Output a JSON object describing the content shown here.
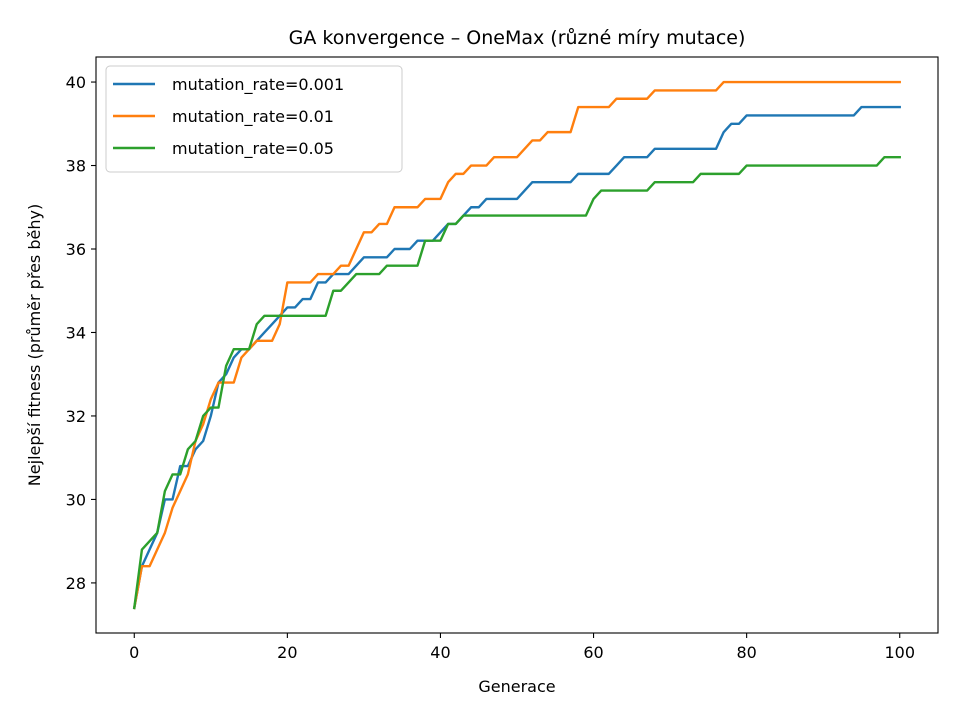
{
  "chart_data": {
    "type": "line",
    "title": "GA konvergence – OneMax (různé míry mutace)",
    "xlabel": "Generace",
    "ylabel": "Nejlepší fitness (průměr přes běhy)",
    "xlim": [
      -5,
      105
    ],
    "ylim": [
      26.8,
      40.6
    ],
    "xticks": [
      0,
      20,
      40,
      60,
      80,
      100
    ],
    "yticks": [
      28,
      30,
      32,
      34,
      36,
      38,
      40
    ],
    "grid": false,
    "legend_position": "top-left",
    "series": [
      {
        "name": "mutation_rate=0.001",
        "color": "#1f77b4",
        "points": [
          [
            0,
            27.4
          ],
          [
            1,
            28.4
          ],
          [
            2,
            28.8
          ],
          [
            3,
            29.2
          ],
          [
            4,
            30.0
          ],
          [
            5,
            30.0
          ],
          [
            6,
            30.8
          ],
          [
            7,
            30.8
          ],
          [
            8,
            31.2
          ],
          [
            9,
            31.4
          ],
          [
            10,
            32.0
          ],
          [
            11,
            32.8
          ],
          [
            12,
            33.0
          ],
          [
            13,
            33.4
          ],
          [
            14,
            33.6
          ],
          [
            15,
            33.6
          ],
          [
            16,
            33.8
          ],
          [
            17,
            34.0
          ],
          [
            18,
            34.2
          ],
          [
            19,
            34.4
          ],
          [
            20,
            34.6
          ],
          [
            21,
            34.6
          ],
          [
            22,
            34.8
          ],
          [
            23,
            34.8
          ],
          [
            24,
            35.2
          ],
          [
            25,
            35.2
          ],
          [
            26,
            35.4
          ],
          [
            27,
            35.4
          ],
          [
            28,
            35.4
          ],
          [
            29,
            35.6
          ],
          [
            30,
            35.8
          ],
          [
            31,
            35.8
          ],
          [
            32,
            35.8
          ],
          [
            33,
            35.8
          ],
          [
            34,
            36.0
          ],
          [
            35,
            36.0
          ],
          [
            36,
            36.0
          ],
          [
            37,
            36.2
          ],
          [
            38,
            36.2
          ],
          [
            39,
            36.2
          ],
          [
            40,
            36.4
          ],
          [
            41,
            36.6
          ],
          [
            42,
            36.6
          ],
          [
            43,
            36.8
          ],
          [
            44,
            37.0
          ],
          [
            45,
            37.0
          ],
          [
            46,
            37.2
          ],
          [
            47,
            37.2
          ],
          [
            48,
            37.2
          ],
          [
            49,
            37.2
          ],
          [
            50,
            37.2
          ],
          [
            51,
            37.4
          ],
          [
            52,
            37.6
          ],
          [
            53,
            37.6
          ],
          [
            54,
            37.6
          ],
          [
            55,
            37.6
          ],
          [
            56,
            37.6
          ],
          [
            57,
            37.6
          ],
          [
            58,
            37.8
          ],
          [
            59,
            37.8
          ],
          [
            60,
            37.8
          ],
          [
            61,
            37.8
          ],
          [
            62,
            37.8
          ],
          [
            63,
            38.0
          ],
          [
            64,
            38.2
          ],
          [
            65,
            38.2
          ],
          [
            66,
            38.2
          ],
          [
            67,
            38.2
          ],
          [
            68,
            38.4
          ],
          [
            69,
            38.4
          ],
          [
            70,
            38.4
          ],
          [
            71,
            38.4
          ],
          [
            72,
            38.4
          ],
          [
            73,
            38.4
          ],
          [
            74,
            38.4
          ],
          [
            75,
            38.4
          ],
          [
            76,
            38.4
          ],
          [
            77,
            38.8
          ],
          [
            78,
            39.0
          ],
          [
            79,
            39.0
          ],
          [
            80,
            39.2
          ],
          [
            81,
            39.2
          ],
          [
            82,
            39.2
          ],
          [
            83,
            39.2
          ],
          [
            84,
            39.2
          ],
          [
            85,
            39.2
          ],
          [
            86,
            39.2
          ],
          [
            87,
            39.2
          ],
          [
            88,
            39.2
          ],
          [
            89,
            39.2
          ],
          [
            90,
            39.2
          ],
          [
            91,
            39.2
          ],
          [
            92,
            39.2
          ],
          [
            93,
            39.2
          ],
          [
            94,
            39.2
          ],
          [
            95,
            39.4
          ],
          [
            96,
            39.4
          ],
          [
            97,
            39.4
          ],
          [
            98,
            39.4
          ],
          [
            99,
            39.4
          ],
          [
            100,
            39.4
          ]
        ]
      },
      {
        "name": "mutation_rate=0.01",
        "color": "#ff7f0e",
        "points": [
          [
            0,
            27.4
          ],
          [
            1,
            28.4
          ],
          [
            2,
            28.4
          ],
          [
            3,
            28.8
          ],
          [
            4,
            29.2
          ],
          [
            5,
            29.8
          ],
          [
            6,
            30.2
          ],
          [
            7,
            30.6
          ],
          [
            8,
            31.4
          ],
          [
            9,
            31.8
          ],
          [
            10,
            32.4
          ],
          [
            11,
            32.8
          ],
          [
            12,
            32.8
          ],
          [
            13,
            32.8
          ],
          [
            14,
            33.4
          ],
          [
            15,
            33.6
          ],
          [
            16,
            33.8
          ],
          [
            17,
            33.8
          ],
          [
            18,
            33.8
          ],
          [
            19,
            34.2
          ],
          [
            20,
            35.2
          ],
          [
            21,
            35.2
          ],
          [
            22,
            35.2
          ],
          [
            23,
            35.2
          ],
          [
            24,
            35.4
          ],
          [
            25,
            35.4
          ],
          [
            26,
            35.4
          ],
          [
            27,
            35.6
          ],
          [
            28,
            35.6
          ],
          [
            29,
            36.0
          ],
          [
            30,
            36.4
          ],
          [
            31,
            36.4
          ],
          [
            32,
            36.6
          ],
          [
            33,
            36.6
          ],
          [
            34,
            37.0
          ],
          [
            35,
            37.0
          ],
          [
            36,
            37.0
          ],
          [
            37,
            37.0
          ],
          [
            38,
            37.2
          ],
          [
            39,
            37.2
          ],
          [
            40,
            37.2
          ],
          [
            41,
            37.6
          ],
          [
            42,
            37.8
          ],
          [
            43,
            37.8
          ],
          [
            44,
            38.0
          ],
          [
            45,
            38.0
          ],
          [
            46,
            38.0
          ],
          [
            47,
            38.2
          ],
          [
            48,
            38.2
          ],
          [
            49,
            38.2
          ],
          [
            50,
            38.2
          ],
          [
            51,
            38.4
          ],
          [
            52,
            38.6
          ],
          [
            53,
            38.6
          ],
          [
            54,
            38.8
          ],
          [
            55,
            38.8
          ],
          [
            56,
            38.8
          ],
          [
            57,
            38.8
          ],
          [
            58,
            39.4
          ],
          [
            59,
            39.4
          ],
          [
            60,
            39.4
          ],
          [
            61,
            39.4
          ],
          [
            62,
            39.4
          ],
          [
            63,
            39.6
          ],
          [
            64,
            39.6
          ],
          [
            65,
            39.6
          ],
          [
            66,
            39.6
          ],
          [
            67,
            39.6
          ],
          [
            68,
            39.8
          ],
          [
            69,
            39.8
          ],
          [
            70,
            39.8
          ],
          [
            71,
            39.8
          ],
          [
            72,
            39.8
          ],
          [
            73,
            39.8
          ],
          [
            74,
            39.8
          ],
          [
            75,
            39.8
          ],
          [
            76,
            39.8
          ],
          [
            77,
            40.0
          ],
          [
            78,
            40.0
          ],
          [
            79,
            40.0
          ],
          [
            80,
            40.0
          ],
          [
            81,
            40.0
          ],
          [
            82,
            40.0
          ],
          [
            83,
            40.0
          ],
          [
            84,
            40.0
          ],
          [
            85,
            40.0
          ],
          [
            86,
            40.0
          ],
          [
            87,
            40.0
          ],
          [
            88,
            40.0
          ],
          [
            89,
            40.0
          ],
          [
            90,
            40.0
          ],
          [
            91,
            40.0
          ],
          [
            92,
            40.0
          ],
          [
            93,
            40.0
          ],
          [
            94,
            40.0
          ],
          [
            95,
            40.0
          ],
          [
            96,
            40.0
          ],
          [
            97,
            40.0
          ],
          [
            98,
            40.0
          ],
          [
            99,
            40.0
          ],
          [
            100,
            40.0
          ]
        ]
      },
      {
        "name": "mutation_rate=0.05",
        "color": "#2ca02c",
        "points": [
          [
            0,
            27.4
          ],
          [
            1,
            28.8
          ],
          [
            2,
            29.0
          ],
          [
            3,
            29.2
          ],
          [
            4,
            30.2
          ],
          [
            5,
            30.6
          ],
          [
            6,
            30.6
          ],
          [
            7,
            31.2
          ],
          [
            8,
            31.4
          ],
          [
            9,
            32.0
          ],
          [
            10,
            32.2
          ],
          [
            11,
            32.2
          ],
          [
            12,
            33.2
          ],
          [
            13,
            33.6
          ],
          [
            14,
            33.6
          ],
          [
            15,
            33.6
          ],
          [
            16,
            34.2
          ],
          [
            17,
            34.4
          ],
          [
            18,
            34.4
          ],
          [
            19,
            34.4
          ],
          [
            20,
            34.4
          ],
          [
            21,
            34.4
          ],
          [
            22,
            34.4
          ],
          [
            23,
            34.4
          ],
          [
            24,
            34.4
          ],
          [
            25,
            34.4
          ],
          [
            26,
            35.0
          ],
          [
            27,
            35.0
          ],
          [
            28,
            35.2
          ],
          [
            29,
            35.4
          ],
          [
            30,
            35.4
          ],
          [
            31,
            35.4
          ],
          [
            32,
            35.4
          ],
          [
            33,
            35.6
          ],
          [
            34,
            35.6
          ],
          [
            35,
            35.6
          ],
          [
            36,
            35.6
          ],
          [
            37,
            35.6
          ],
          [
            38,
            36.2
          ],
          [
            39,
            36.2
          ],
          [
            40,
            36.2
          ],
          [
            41,
            36.6
          ],
          [
            42,
            36.6
          ],
          [
            43,
            36.8
          ],
          [
            44,
            36.8
          ],
          [
            45,
            36.8
          ],
          [
            46,
            36.8
          ],
          [
            47,
            36.8
          ],
          [
            48,
            36.8
          ],
          [
            49,
            36.8
          ],
          [
            50,
            36.8
          ],
          [
            51,
            36.8
          ],
          [
            52,
            36.8
          ],
          [
            53,
            36.8
          ],
          [
            54,
            36.8
          ],
          [
            55,
            36.8
          ],
          [
            56,
            36.8
          ],
          [
            57,
            36.8
          ],
          [
            58,
            36.8
          ],
          [
            59,
            36.8
          ],
          [
            60,
            37.2
          ],
          [
            61,
            37.4
          ],
          [
            62,
            37.4
          ],
          [
            63,
            37.4
          ],
          [
            64,
            37.4
          ],
          [
            65,
            37.4
          ],
          [
            66,
            37.4
          ],
          [
            67,
            37.4
          ],
          [
            68,
            37.6
          ],
          [
            69,
            37.6
          ],
          [
            70,
            37.6
          ],
          [
            71,
            37.6
          ],
          [
            72,
            37.6
          ],
          [
            73,
            37.6
          ],
          [
            74,
            37.8
          ],
          [
            75,
            37.8
          ],
          [
            76,
            37.8
          ],
          [
            77,
            37.8
          ],
          [
            78,
            37.8
          ],
          [
            79,
            37.8
          ],
          [
            80,
            38.0
          ],
          [
            81,
            38.0
          ],
          [
            82,
            38.0
          ],
          [
            83,
            38.0
          ],
          [
            84,
            38.0
          ],
          [
            85,
            38.0
          ],
          [
            86,
            38.0
          ],
          [
            87,
            38.0
          ],
          [
            88,
            38.0
          ],
          [
            89,
            38.0
          ],
          [
            90,
            38.0
          ],
          [
            91,
            38.0
          ],
          [
            92,
            38.0
          ],
          [
            93,
            38.0
          ],
          [
            94,
            38.0
          ],
          [
            95,
            38.0
          ],
          [
            96,
            38.0
          ],
          [
            97,
            38.0
          ],
          [
            98,
            38.2
          ],
          [
            99,
            38.2
          ],
          [
            100,
            38.2
          ]
        ]
      }
    ]
  }
}
